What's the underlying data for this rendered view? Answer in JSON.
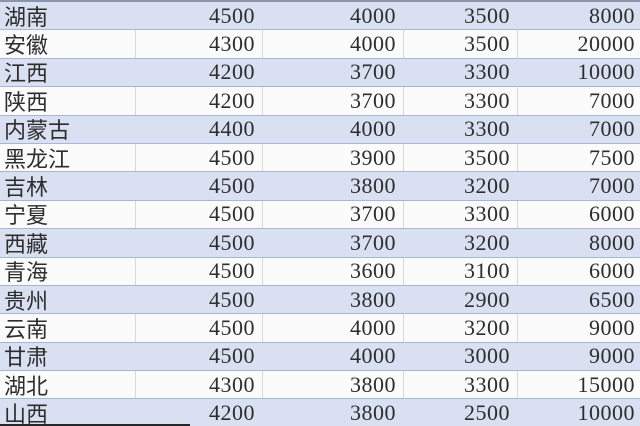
{
  "chart_data": {
    "type": "table",
    "title": "",
    "header_visible": false,
    "layout": {
      "banded_rows": true,
      "first_row_band": "blue",
      "last_row_clipped": true
    },
    "rows": [
      {
        "region": "湖南",
        "values": [
          4500,
          4000,
          3500,
          8000
        ]
      },
      {
        "region": "安徽",
        "values": [
          4300,
          4000,
          3500,
          20000
        ]
      },
      {
        "region": "江西",
        "values": [
          4200,
          3700,
          3300,
          10000
        ]
      },
      {
        "region": "陕西",
        "values": [
          4200,
          3700,
          3300,
          7000
        ]
      },
      {
        "region": "内蒙古",
        "values": [
          4400,
          4000,
          3300,
          7000
        ]
      },
      {
        "region": "黑龙江",
        "values": [
          4500,
          3900,
          3500,
          7500
        ]
      },
      {
        "region": "吉林",
        "values": [
          4500,
          3800,
          3200,
          7000
        ]
      },
      {
        "region": "宁夏",
        "values": [
          4500,
          3700,
          3300,
          6000
        ]
      },
      {
        "region": "西藏",
        "values": [
          4500,
          3700,
          3200,
          8000
        ]
      },
      {
        "region": "青海",
        "values": [
          4500,
          3600,
          3100,
          6000
        ]
      },
      {
        "region": "贵州",
        "values": [
          4500,
          3800,
          2900,
          6500
        ]
      },
      {
        "region": "云南",
        "values": [
          4500,
          4000,
          3200,
          9000
        ]
      },
      {
        "region": "甘肃",
        "values": [
          4500,
          4000,
          3000,
          9000
        ]
      },
      {
        "region": "湖北",
        "values": [
          4300,
          3800,
          3300,
          15000
        ]
      },
      {
        "region": "山西",
        "values": [
          4200,
          3800,
          2500,
          10000
        ]
      }
    ]
  },
  "colors": {
    "row_blue": "#d9e0f1",
    "row_white": "#fbfbfb",
    "row_divider": "#a9b6d3",
    "column_line": "#d8d8d8",
    "top_edge_line": "#8b94ab",
    "bottom_mark": "#262626",
    "text": "#2d2d2d"
  }
}
